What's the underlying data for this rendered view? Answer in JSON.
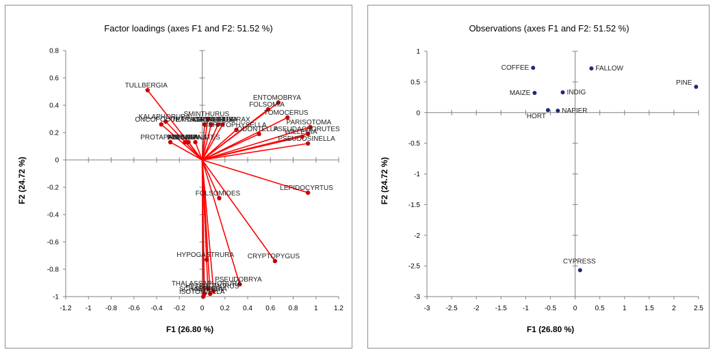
{
  "chart_data": [
    {
      "type": "scatter",
      "variant": "factor-loadings-biplot",
      "title": "Factor loadings (axes F1 and F2: 51.52 %)",
      "xlabel": "F1 (26.80 %)",
      "ylabel": "F2 (24.72 %)",
      "xlim": [
        -1.2,
        1.2
      ],
      "ylim": [
        -1,
        0.8
      ],
      "xticks": [
        "-1.2",
        "-1",
        "-0.8",
        "-0.6",
        "-0.4",
        "-0.2",
        "0",
        "0.2",
        "0.4",
        "0.6",
        "0.8",
        "1",
        "1.2"
      ],
      "yticks": [
        "-1",
        "-0.8",
        "-0.6",
        "-0.4",
        "-0.2",
        "0",
        "0.2",
        "0.4",
        "0.6",
        "0.8"
      ],
      "vectors_from_origin": true,
      "line_color": "#ff0000",
      "point_color": "#cc0000",
      "points": [
        {
          "label": "TULLBERGIA",
          "x": -0.48,
          "y": 0.51
        },
        {
          "label": "KALAPHORURA",
          "x": -0.32,
          "y": 0.28
        },
        {
          "label": "ONCOPODURA",
          "x": -0.36,
          "y": 0.26
        },
        {
          "label": "PROTAPHORURA",
          "x": -0.28,
          "y": 0.13
        },
        {
          "label": "FRIESEA",
          "x": -0.15,
          "y": 0.13
        },
        {
          "label": "FOLSOMINA",
          "x": -0.12,
          "y": 0.13
        },
        {
          "label": "ARRHOPALITES",
          "x": -0.06,
          "y": 0.13
        },
        {
          "label": "SMINTHURUS",
          "x": 0.05,
          "y": 0.3
        },
        {
          "label": "TETRACANTHELLA",
          "x": 0.02,
          "y": 0.26
        },
        {
          "label": "ISOTOMURUS",
          "x": 0.08,
          "y": 0.26
        },
        {
          "label": "SPHAERIDIA",
          "x": 0.14,
          "y": 0.26
        },
        {
          "label": "MEGALOTHORAX",
          "x": 0.18,
          "y": 0.26
        },
        {
          "label": "CERATOPHYSELLA",
          "x": 0.3,
          "y": 0.22
        },
        {
          "label": "ENTOMOBRYA",
          "x": 0.67,
          "y": 0.42
        },
        {
          "label": "FOLSOMIA",
          "x": 0.58,
          "y": 0.37
        },
        {
          "label": "TOMOCERUS",
          "x": 0.75,
          "y": 0.31
        },
        {
          "label": "ODONTELLA",
          "x": 0.5,
          "y": 0.19
        },
        {
          "label": "PARISOTOMA",
          "x": 0.95,
          "y": 0.24
        },
        {
          "label": "PSEUDACHORUTES",
          "x": 0.93,
          "y": 0.19
        },
        {
          "label": "PSEUDOSINELLA",
          "x": 0.93,
          "y": 0.12
        },
        {
          "label": "WILLEMIA",
          "x": 0.88,
          "y": 0.17
        },
        {
          "label": "LEPIDOCYRTUS",
          "x": 0.93,
          "y": -0.24
        },
        {
          "label": "FOLSOMIDES",
          "x": 0.15,
          "y": -0.28
        },
        {
          "label": "CRYPTOPYGUS",
          "x": 0.64,
          "y": -0.74
        },
        {
          "label": "HYPOGASTRURA",
          "x": 0.04,
          "y": -0.73
        },
        {
          "label": "PSEUDOBRYA",
          "x": 0.33,
          "y": -0.91
        },
        {
          "label": "THALASSAPHORURA",
          "x": 0.05,
          "y": -0.94
        },
        {
          "label": "HETEROMURUS",
          "x": 0.1,
          "y": -0.96
        },
        {
          "label": "SINELLA",
          "x": 0.07,
          "y": -0.98
        },
        {
          "label": "SCHAEFFERIA",
          "x": 0.02,
          "y": -0.98
        },
        {
          "label": "ISOTOMIELLA",
          "x": 0.01,
          "y": -1.0
        }
      ]
    },
    {
      "type": "scatter",
      "title": "Observations (axes F1 and F2: 51.52 %)",
      "xlabel": "F1 (26.80 %)",
      "ylabel": "F2 (24.72 %)",
      "xlim": [
        -3,
        2.5
      ],
      "ylim": [
        -3,
        1
      ],
      "xticks": [
        "-3",
        "-2.5",
        "-2",
        "-1.5",
        "-1",
        "-0.5",
        "0",
        "0.5",
        "1",
        "1.5",
        "2",
        "2.5"
      ],
      "yticks": [
        "-3",
        "-2.5",
        "-2",
        "-1.5",
        "-1",
        "-0.5",
        "0",
        "0.5",
        "1"
      ],
      "point_color": "#1f2a7a",
      "points": [
        {
          "label": "COFFEE",
          "x": -0.85,
          "y": 0.73
        },
        {
          "label": "FALLOW",
          "x": 0.33,
          "y": 0.72
        },
        {
          "label": "PINE",
          "x": 2.45,
          "y": 0.42
        },
        {
          "label": "MAIZE",
          "x": -0.82,
          "y": 0.32
        },
        {
          "label": "INDIG",
          "x": -0.25,
          "y": 0.33
        },
        {
          "label": "HORT",
          "x": -0.55,
          "y": 0.04
        },
        {
          "label": "NAPIER",
          "x": -0.35,
          "y": 0.03
        },
        {
          "label": "CYPRESS",
          "x": 0.1,
          "y": -2.57
        }
      ]
    }
  ]
}
